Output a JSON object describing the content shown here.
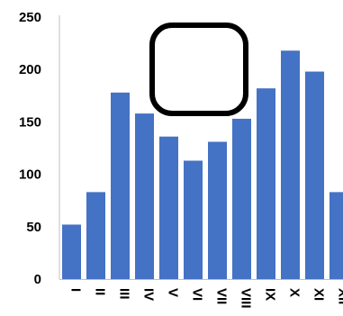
{
  "chart_data": {
    "type": "bar",
    "categories": [
      "I",
      "II",
      "III",
      "IV",
      "V",
      "VI",
      "VII",
      "VIII",
      "IX",
      "X",
      "XI",
      "XII"
    ],
    "values": [
      52,
      83,
      178,
      158,
      136,
      113,
      131,
      153,
      182,
      218,
      198,
      83
    ],
    "ylim": [
      0,
      250
    ],
    "yticks": [
      "0",
      "50",
      "100",
      "150",
      "200",
      "250"
    ],
    "grid": false,
    "legend": "none",
    "bar_color": "#4472C4",
    "axis_color": "#bfbfbf",
    "overlay_shape": "rounded-square-outline"
  }
}
